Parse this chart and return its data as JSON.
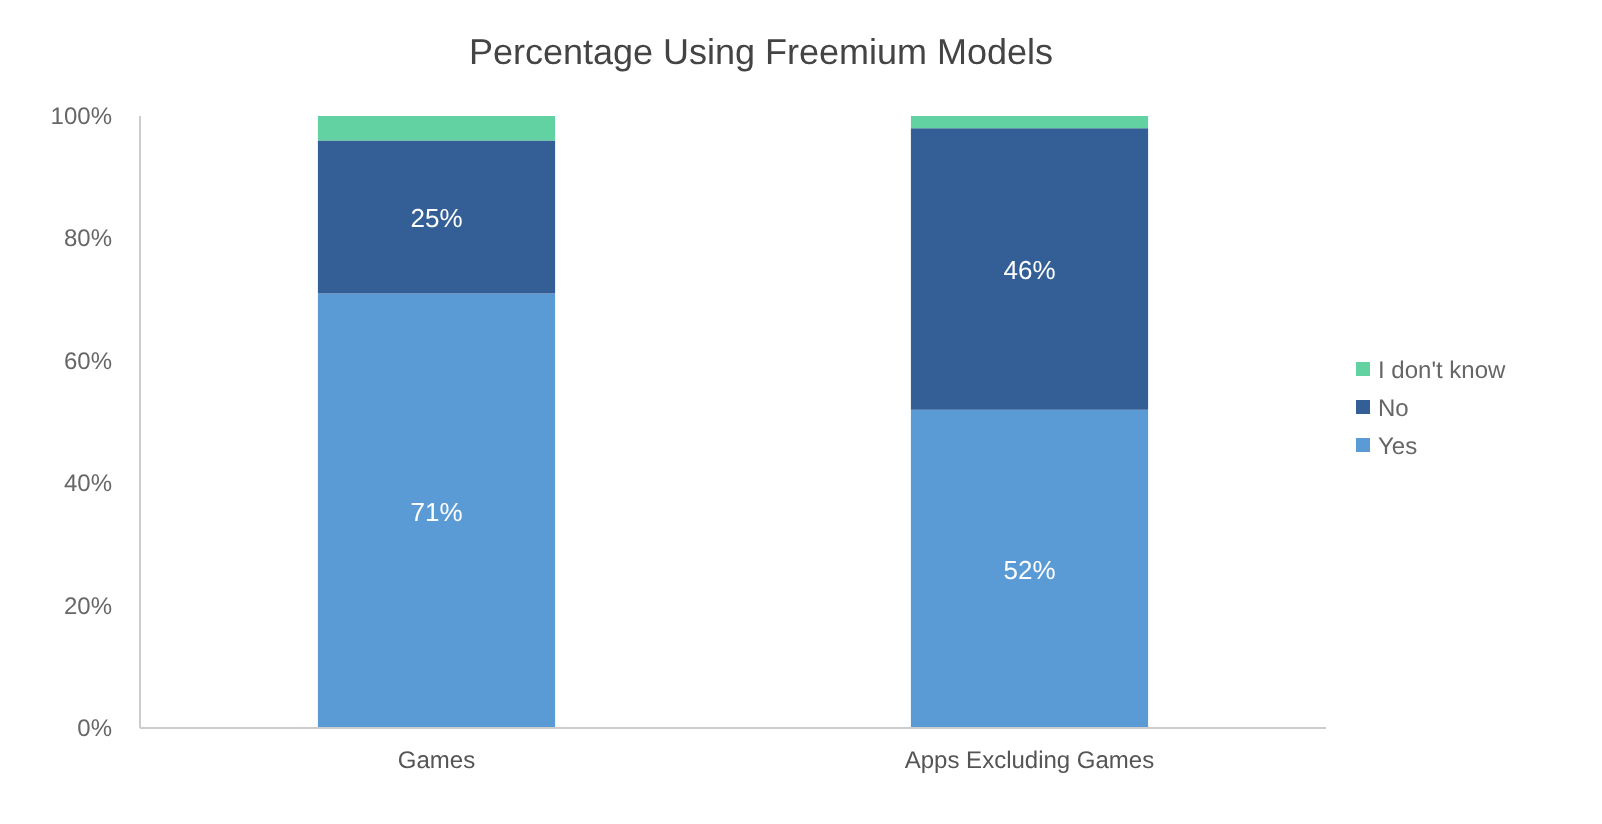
{
  "chart_data": {
    "type": "bar",
    "title": "Percentage Using Freemium Models",
    "categories": [
      "Games",
      "Apps Excluding Games"
    ],
    "stacked": true,
    "series": [
      {
        "name": "Yes",
        "color": "#5b9bd5",
        "values": [
          71,
          52
        ],
        "value_labels": [
          "71%",
          "52%"
        ]
      },
      {
        "name": "No",
        "color": "#335f96",
        "values": [
          25,
          46
        ],
        "value_labels": [
          "25%",
          "46%"
        ]
      },
      {
        "name": "I don't know",
        "color": "#62d2a2",
        "values": [
          4,
          2
        ],
        "value_labels": [
          null,
          null
        ]
      }
    ],
    "ylim": [
      0,
      100
    ],
    "yticks": [
      {
        "value": 0,
        "label": "0%"
      },
      {
        "value": 20,
        "label": "20%"
      },
      {
        "value": 40,
        "label": "40%"
      },
      {
        "value": 60,
        "label": "60%"
      },
      {
        "value": 80,
        "label": "80%"
      },
      {
        "value": 100,
        "label": "100%"
      }
    ],
    "legend": "right"
  }
}
